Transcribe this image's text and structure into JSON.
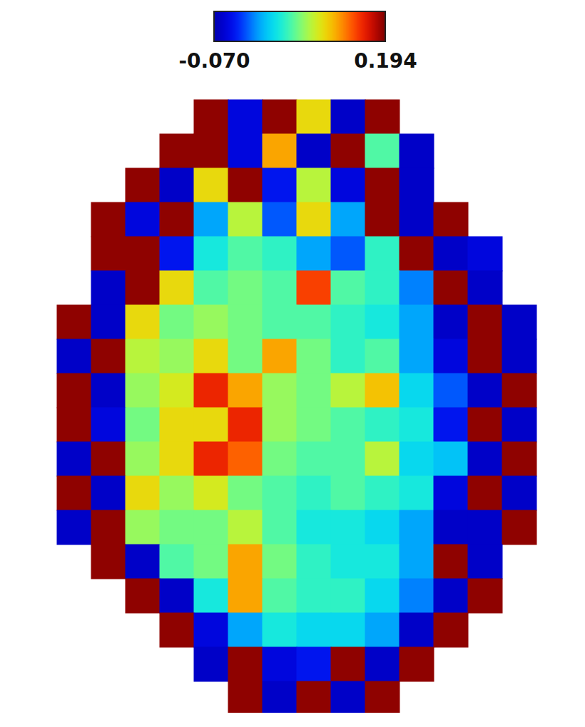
{
  "chart_data": {
    "type": "heatmap",
    "tick_labels": false,
    "colorbar_range": [
      -0.07,
      0.194
    ],
    "colorbar_ticks": [
      {
        "value": -0.07,
        "label": "-0.070"
      },
      {
        "value": 0.194,
        "label": "0.194"
      }
    ],
    "cells": [
      [
        null,
        null,
        null,
        null,
        0.19,
        -0.05,
        0.19,
        0.1,
        -0.06,
        0.19,
        null,
        null,
        null,
        null
      ],
      [
        null,
        null,
        null,
        0.19,
        0.19,
        -0.05,
        0.12,
        -0.06,
        0.19,
        0.05,
        -0.06,
        null,
        null,
        null
      ],
      [
        null,
        null,
        0.19,
        -0.06,
        0.1,
        0.19,
        -0.04,
        0.08,
        -0.05,
        0.19,
        -0.06,
        null,
        null,
        null
      ],
      [
        null,
        0.19,
        -0.05,
        0.19,
        0,
        0.08,
        -0.02,
        0.1,
        0,
        0.19,
        -0.06,
        0.19,
        null,
        null
      ],
      [
        null,
        0.19,
        0.19,
        -0.04,
        0.03,
        0.05,
        0.04,
        0,
        -0.02,
        0.04,
        0.19,
        -0.06,
        -0.05,
        null
      ],
      [
        null,
        -0.06,
        0.19,
        0.1,
        0.05,
        0.06,
        0.05,
        0.15,
        0.05,
        0.04,
        -0.01,
        0.19,
        -0.06,
        null
      ],
      [
        0.19,
        -0.06,
        0.1,
        0.06,
        0.07,
        0.06,
        0.05,
        0.05,
        0.04,
        0.03,
        0,
        -0.06,
        0.19,
        -0.06
      ],
      [
        -0.06,
        0.19,
        0.08,
        0.07,
        0.1,
        0.06,
        0.12,
        0.06,
        0.04,
        0.05,
        0,
        -0.05,
        0.19,
        -0.06
      ],
      [
        0.19,
        -0.06,
        0.07,
        0.09,
        0.16,
        0.12,
        0.07,
        0.06,
        0.08,
        0.11,
        0.02,
        -0.02,
        -0.06,
        0.19
      ],
      [
        0.19,
        -0.05,
        0.06,
        0.1,
        0.1,
        0.16,
        0.07,
        0.06,
        0.05,
        0.04,
        0.03,
        -0.04,
        0.19,
        -0.06
      ],
      [
        -0.06,
        0.19,
        0.07,
        0.1,
        0.16,
        0.14,
        0.06,
        0.05,
        0.05,
        0.08,
        0.02,
        0.01,
        -0.06,
        0.19
      ],
      [
        0.19,
        -0.06,
        0.1,
        0.07,
        0.09,
        0.06,
        0.05,
        0.04,
        0.05,
        0.04,
        0.03,
        -0.05,
        0.19,
        -0.06
      ],
      [
        -0.06,
        0.19,
        0.07,
        0.06,
        0.06,
        0.08,
        0.05,
        0.03,
        0.03,
        0.02,
        0,
        -0.06,
        -0.06,
        0.19
      ],
      [
        null,
        0.19,
        -0.06,
        0.05,
        0.06,
        0.12,
        0.06,
        0.04,
        0.03,
        0.03,
        0,
        0.19,
        -0.06,
        null
      ],
      [
        null,
        null,
        0.19,
        -0.06,
        0.03,
        0.12,
        0.05,
        0.04,
        0.04,
        0.02,
        -0.01,
        -0.06,
        0.19,
        null
      ],
      [
        null,
        null,
        null,
        0.19,
        -0.05,
        0,
        0.03,
        0.02,
        0.02,
        0,
        -0.06,
        0.19,
        null,
        null
      ],
      [
        null,
        null,
        null,
        null,
        -0.06,
        0.19,
        -0.05,
        -0.04,
        0.19,
        -0.06,
        0.19,
        null,
        null,
        null
      ],
      [
        null,
        null,
        null,
        null,
        null,
        0.19,
        -0.06,
        0.19,
        -0.06,
        0.19,
        null,
        null,
        null,
        null
      ]
    ]
  }
}
